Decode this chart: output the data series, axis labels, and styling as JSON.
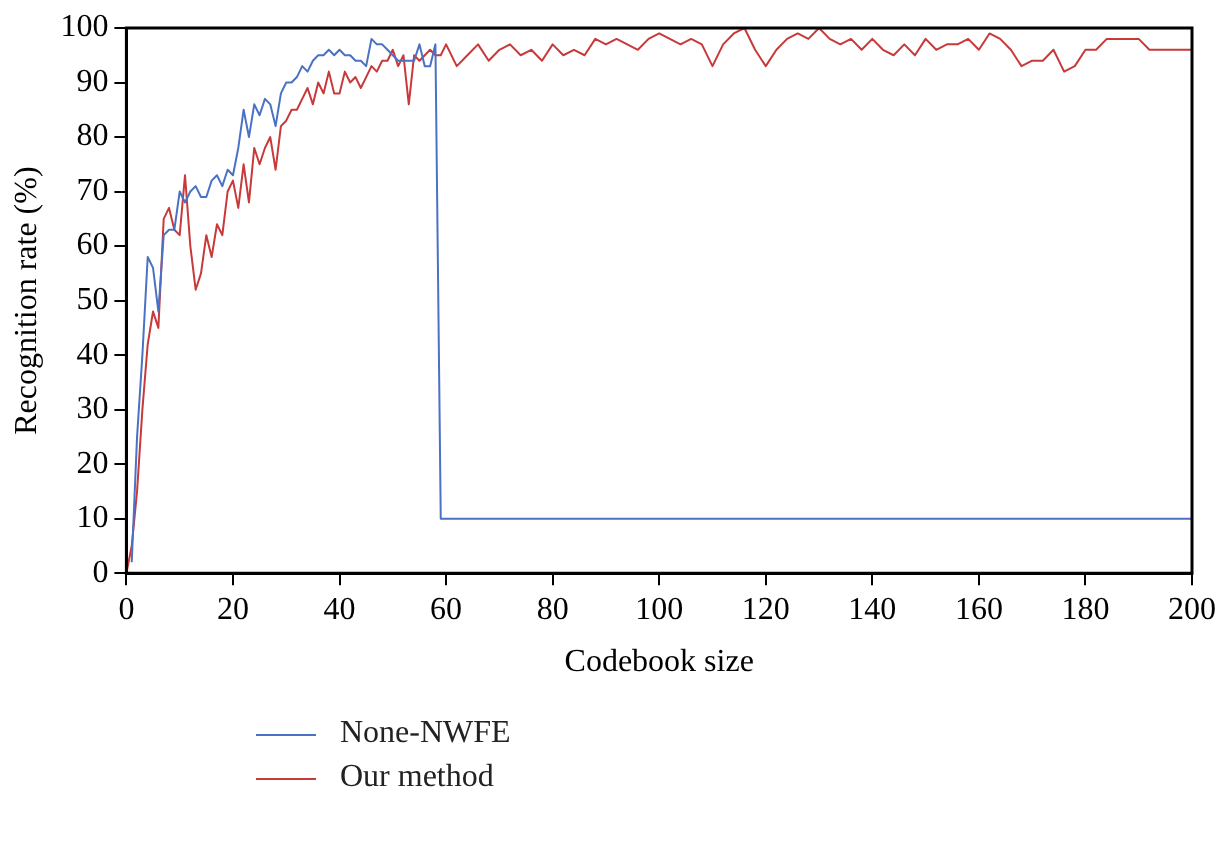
{
  "chart_data": {
    "type": "line",
    "xlabel": "Codebook size",
    "ylabel": "Recognition rate (%)",
    "xlim": [
      0,
      200
    ],
    "ylim": [
      0,
      100
    ],
    "xticks": [
      0,
      20,
      40,
      60,
      80,
      100,
      120,
      140,
      160,
      180,
      200
    ],
    "yticks": [
      0,
      10,
      20,
      30,
      40,
      50,
      60,
      70,
      80,
      90,
      100
    ],
    "grid": false,
    "legend": "bottom",
    "marker": "none",
    "line_style": "solid",
    "series": [
      {
        "name": "None-NWFE",
        "color": "#4a72c4",
        "x": [
          1,
          2,
          3,
          4,
          5,
          6,
          7,
          8,
          9,
          10,
          11,
          12,
          13,
          14,
          15,
          16,
          17,
          18,
          19,
          20,
          21,
          22,
          23,
          24,
          25,
          26,
          27,
          28,
          29,
          30,
          31,
          32,
          33,
          34,
          35,
          36,
          37,
          38,
          39,
          40,
          41,
          42,
          43,
          44,
          45,
          46,
          47,
          48,
          49,
          50,
          51,
          52,
          53,
          54,
          55,
          56,
          57,
          58,
          59,
          200
        ],
        "values": [
          2,
          25,
          40,
          58,
          56,
          48,
          62,
          63,
          63,
          70,
          68,
          70,
          71,
          69,
          69,
          72,
          73,
          71,
          74,
          73,
          78,
          85,
          80,
          86,
          84,
          87,
          86,
          82,
          88,
          90,
          90,
          91,
          93,
          92,
          94,
          95,
          95,
          96,
          95,
          96,
          95,
          95,
          94,
          94,
          93,
          98,
          97,
          97,
          96,
          95,
          94,
          94,
          94,
          94,
          97,
          93,
          93,
          97,
          10,
          10
        ]
      },
      {
        "name": "Our method",
        "color": "#c8393a",
        "x": [
          0,
          1,
          2,
          3,
          4,
          5,
          6,
          7,
          8,
          9,
          10,
          11,
          12,
          13,
          14,
          15,
          16,
          17,
          18,
          19,
          20,
          21,
          22,
          23,
          24,
          25,
          26,
          27,
          28,
          29,
          30,
          31,
          32,
          33,
          34,
          35,
          36,
          37,
          38,
          39,
          40,
          41,
          42,
          43,
          44,
          45,
          46,
          47,
          48,
          49,
          50,
          51,
          52,
          53,
          54,
          55,
          56,
          57,
          58,
          59,
          60,
          62,
          64,
          66,
          68,
          70,
          72,
          74,
          76,
          78,
          80,
          82,
          84,
          86,
          88,
          90,
          92,
          94,
          96,
          98,
          100,
          102,
          104,
          106,
          108,
          110,
          112,
          114,
          116,
          118,
          120,
          122,
          124,
          126,
          128,
          130,
          132,
          134,
          136,
          138,
          140,
          142,
          144,
          146,
          148,
          150,
          152,
          154,
          156,
          158,
          160,
          162,
          164,
          166,
          168,
          170,
          172,
          174,
          176,
          178,
          180,
          182,
          184,
          186,
          188,
          190,
          192,
          194,
          196,
          198,
          200
        ],
        "values": [
          0,
          5,
          15,
          30,
          42,
          48,
          45,
          65,
          67,
          63,
          62,
          73,
          60,
          52,
          55,
          62,
          58,
          64,
          62,
          70,
          72,
          67,
          75,
          68,
          78,
          75,
          78,
          80,
          74,
          82,
          83,
          85,
          85,
          87,
          89,
          86,
          90,
          88,
          92,
          88,
          88,
          92,
          90,
          91,
          89,
          91,
          93,
          92,
          94,
          94,
          96,
          93,
          95,
          86,
          95,
          94,
          95,
          96,
          95,
          95,
          97,
          93,
          95,
          97,
          94,
          96,
          97,
          95,
          96,
          94,
          97,
          95,
          96,
          95,
          98,
          97,
          98,
          97,
          96,
          98,
          99,
          98,
          97,
          98,
          97,
          93,
          97,
          99,
          100,
          96,
          93,
          96,
          98,
          99,
          98,
          100,
          98,
          97,
          98,
          96,
          98,
          96,
          95,
          97,
          95,
          98,
          96,
          97,
          97,
          98,
          96,
          99,
          98,
          96,
          93,
          94,
          94,
          96,
          92,
          93,
          96,
          96,
          98,
          98,
          98,
          98,
          96,
          96,
          96,
          96,
          96
        ]
      }
    ]
  }
}
